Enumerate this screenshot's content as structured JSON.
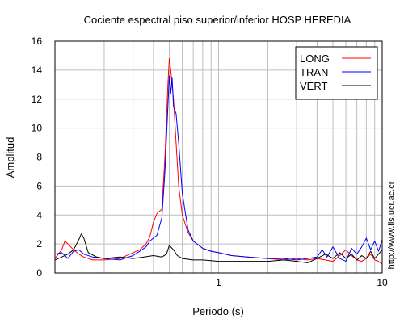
{
  "chart_data": {
    "type": "line",
    "title": "Cociente espectral piso superior/inferior  HOSP HEREDIA",
    "xlabel": "Periodo (s)",
    "ylabel": "Amplitud",
    "x_scale": "log",
    "xlim": [
      0.1,
      10
    ],
    "ylim": [
      0,
      16
    ],
    "x_ticks": [
      {
        "value": 1,
        "label": "1"
      },
      {
        "value": 10,
        "label": "10"
      }
    ],
    "y_ticks": [
      {
        "value": 0,
        "label": "0"
      },
      {
        "value": 2,
        "label": "2"
      },
      {
        "value": 4,
        "label": "4"
      },
      {
        "value": 6,
        "label": "6"
      },
      {
        "value": 8,
        "label": "8"
      },
      {
        "value": 10,
        "label": "10"
      },
      {
        "value": 12,
        "label": "12"
      },
      {
        "value": 14,
        "label": "14"
      },
      {
        "value": 16,
        "label": "16"
      }
    ],
    "grid": true,
    "legend_position": "top-right",
    "credit": "http://www.lis.ucr.ac.cr",
    "series": [
      {
        "name": "LONG",
        "color": "#ff0000",
        "x": [
          0.1,
          0.11,
          0.115,
          0.12,
          0.13,
          0.14,
          0.15,
          0.17,
          0.2,
          0.25,
          0.3,
          0.33,
          0.36,
          0.38,
          0.4,
          0.42,
          0.45,
          0.47,
          0.49,
          0.5,
          0.51,
          0.52,
          0.53,
          0.55,
          0.57,
          0.6,
          0.65,
          0.7,
          0.8,
          0.9,
          1.0,
          1.2,
          1.5,
          2.0,
          2.5,
          3.0,
          3.5,
          4.0,
          4.5,
          5.0,
          5.5,
          6.0,
          6.5,
          7.0,
          7.5,
          8.0,
          8.5,
          9.0,
          9.5,
          10
        ],
        "y": [
          1.0,
          1.6,
          2.2,
          2.0,
          1.6,
          1.3,
          1.1,
          0.9,
          0.9,
          1.0,
          1.4,
          1.6,
          2.0,
          2.5,
          3.5,
          4.1,
          4.4,
          8.0,
          13.0,
          14.8,
          14.0,
          13.0,
          12.0,
          9.0,
          6.0,
          4.0,
          2.8,
          2.2,
          1.7,
          1.5,
          1.4,
          1.2,
          1.1,
          1.0,
          0.9,
          1.0,
          0.9,
          1.0,
          0.9,
          0.8,
          1.2,
          1.6,
          1.2,
          0.9,
          0.8,
          1.0,
          1.3,
          0.9,
          0.8,
          0.6
        ]
      },
      {
        "name": "TRAN",
        "color": "#0000ff",
        "x": [
          0.1,
          0.11,
          0.12,
          0.13,
          0.14,
          0.15,
          0.17,
          0.2,
          0.25,
          0.3,
          0.33,
          0.36,
          0.38,
          0.4,
          0.42,
          0.45,
          0.47,
          0.49,
          0.5,
          0.51,
          0.52,
          0.53,
          0.55,
          0.57,
          0.6,
          0.65,
          0.7,
          0.8,
          0.9,
          1.0,
          1.2,
          1.5,
          2.0,
          2.5,
          3.0,
          3.5,
          4.0,
          4.3,
          4.6,
          5.0,
          5.5,
          6.0,
          6.5,
          7.0,
          7.5,
          8.0,
          8.5,
          9.0,
          9.5,
          10
        ],
        "y": [
          1.3,
          1.4,
          1.0,
          1.5,
          1.6,
          1.3,
          1.1,
          1.0,
          0.9,
          1.2,
          1.5,
          1.8,
          2.2,
          2.4,
          2.6,
          3.8,
          7.0,
          11.5,
          13.6,
          12.4,
          13.5,
          11.5,
          11.0,
          9.0,
          5.5,
          3.0,
          2.2,
          1.7,
          1.5,
          1.4,
          1.2,
          1.1,
          1.0,
          1.0,
          0.9,
          1.0,
          1.1,
          1.6,
          1.1,
          1.8,
          1.0,
          0.8,
          1.7,
          1.3,
          1.8,
          2.4,
          1.6,
          2.2,
          1.5,
          2.3
        ]
      },
      {
        "name": "VERT",
        "color": "#000000",
        "x": [
          0.1,
          0.11,
          0.12,
          0.13,
          0.14,
          0.145,
          0.15,
          0.16,
          0.18,
          0.2,
          0.25,
          0.3,
          0.35,
          0.4,
          0.45,
          0.48,
          0.5,
          0.53,
          0.56,
          0.6,
          0.7,
          0.8,
          1.0,
          1.5,
          2.0,
          2.5,
          3.0,
          3.5,
          4.0,
          4.5,
          5.0,
          5.5,
          6.0,
          6.5,
          7.0,
          7.5,
          8.0,
          8.5,
          9.0,
          9.5,
          10
        ],
        "y": [
          0.9,
          1.1,
          1.3,
          1.6,
          2.3,
          2.7,
          2.4,
          1.4,
          1.1,
          1.0,
          1.1,
          1.0,
          1.1,
          1.2,
          1.1,
          1.3,
          1.9,
          1.6,
          1.2,
          1.0,
          0.9,
          0.9,
          0.8,
          0.8,
          0.8,
          0.9,
          0.8,
          0.7,
          1.0,
          1.3,
          1.0,
          1.4,
          1.0,
          1.3,
          0.9,
          1.2,
          1.0,
          1.5,
          1.0,
          1.3,
          1.6
        ]
      }
    ]
  }
}
